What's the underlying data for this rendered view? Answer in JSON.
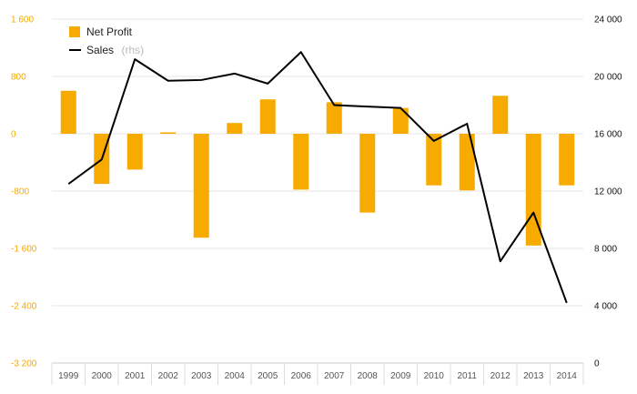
{
  "chart_data": {
    "type": "bar+line",
    "categories": [
      "1999",
      "2000",
      "2001",
      "2002",
      "2003",
      "2004",
      "2005",
      "2006",
      "2007",
      "2008",
      "2009",
      "2010",
      "2011",
      "2012",
      "2013",
      "2014"
    ],
    "series": [
      {
        "name": "Net Profit",
        "type": "bar",
        "axis": "left",
        "color": "#f7ab00",
        "values": [
          600,
          -700,
          -500,
          20,
          -1450,
          150,
          480,
          -780,
          440,
          -1100,
          360,
          -720,
          -790,
          530,
          -1560,
          -720
        ]
      },
      {
        "name": "Sales",
        "name_suffix": "(rhs)",
        "type": "line",
        "axis": "right",
        "color": "#000000",
        "values": [
          12500,
          14200,
          21200,
          19700,
          19750,
          20200,
          19500,
          21700,
          18000,
          17900,
          17800,
          15500,
          16700,
          7100,
          10500,
          4200
        ]
      }
    ],
    "y_left": {
      "ylim": [
        -3200,
        1600
      ],
      "ticks": [
        1600,
        800,
        0,
        -800,
        -1600,
        -2400,
        -3200
      ],
      "tick_labels": [
        "1 600",
        "800",
        "0",
        "-800",
        "-1 600",
        "-2 400",
        "-3 200"
      ]
    },
    "y_right": {
      "ylim": [
        0,
        24000
      ],
      "ticks": [
        24000,
        20000,
        16000,
        12000,
        8000,
        4000,
        0
      ],
      "tick_labels": [
        "24 000",
        "20 000",
        "16 000",
        "12 000",
        "8 000",
        "4 000",
        "0"
      ]
    },
    "grid": true,
    "legend_position": "top-left",
    "legend": {
      "net_profit_label": "Net Profit",
      "sales_label": "Sales",
      "sales_suffix": "(rhs)"
    }
  }
}
